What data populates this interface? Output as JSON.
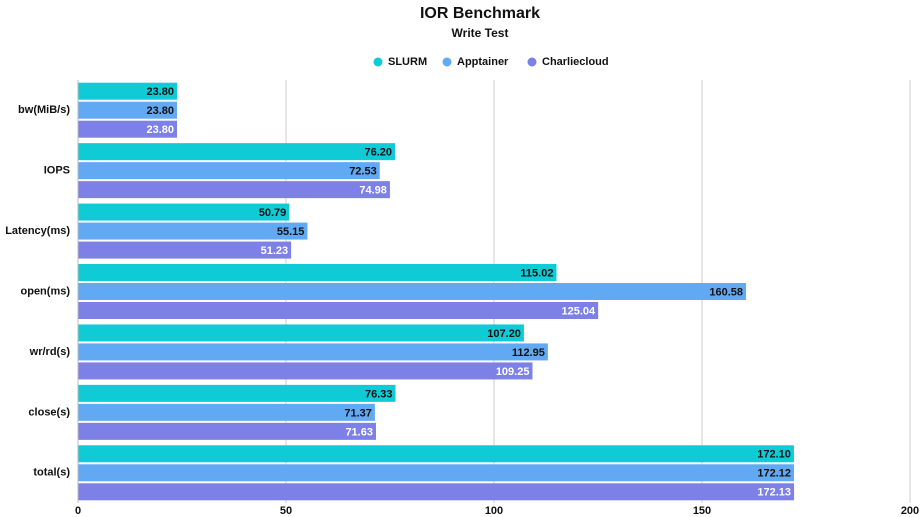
{
  "chart_data": {
    "type": "bar",
    "orientation": "horizontal",
    "title": "IOR Benchmark",
    "subtitle": "Write Test",
    "categories": [
      "bw(MiB/s)",
      "IOPS",
      "Latency(ms)",
      "open(ms)",
      "wr/rd(s)",
      "close(s)",
      "total(s)"
    ],
    "series": [
      {
        "name": "SLURM",
        "color": "#0fcbd6",
        "label_color": "#111111",
        "values": [
          23.8,
          76.2,
          50.79,
          115.02,
          107.2,
          76.33,
          172.1
        ],
        "value_labels": [
          "23.80",
          "76.20",
          "50.79",
          "115.02",
          "107.20",
          "76.33",
          "172.10"
        ]
      },
      {
        "name": "Apptainer",
        "color": "#62a9f4",
        "label_color": "#111111",
        "values": [
          23.8,
          72.53,
          55.15,
          160.58,
          112.95,
          71.37,
          172.12
        ],
        "value_labels": [
          "23.80",
          "72.53",
          "55.15",
          "160.58",
          "112.95",
          "71.37",
          "172.12"
        ]
      },
      {
        "name": "Charliecloud",
        "color": "#7d80e6",
        "label_color": "#ffffff",
        "values": [
          23.8,
          74.98,
          51.23,
          125.04,
          109.25,
          71.63,
          172.13
        ],
        "value_labels": [
          "23.80",
          "74.98",
          "51.23",
          "125.04",
          "109.25",
          "71.63",
          "172.13"
        ]
      }
    ],
    "xlim": [
      0,
      200
    ],
    "xticks": [
      0,
      50,
      100,
      150,
      200
    ],
    "grid": true,
    "legend": "top"
  }
}
